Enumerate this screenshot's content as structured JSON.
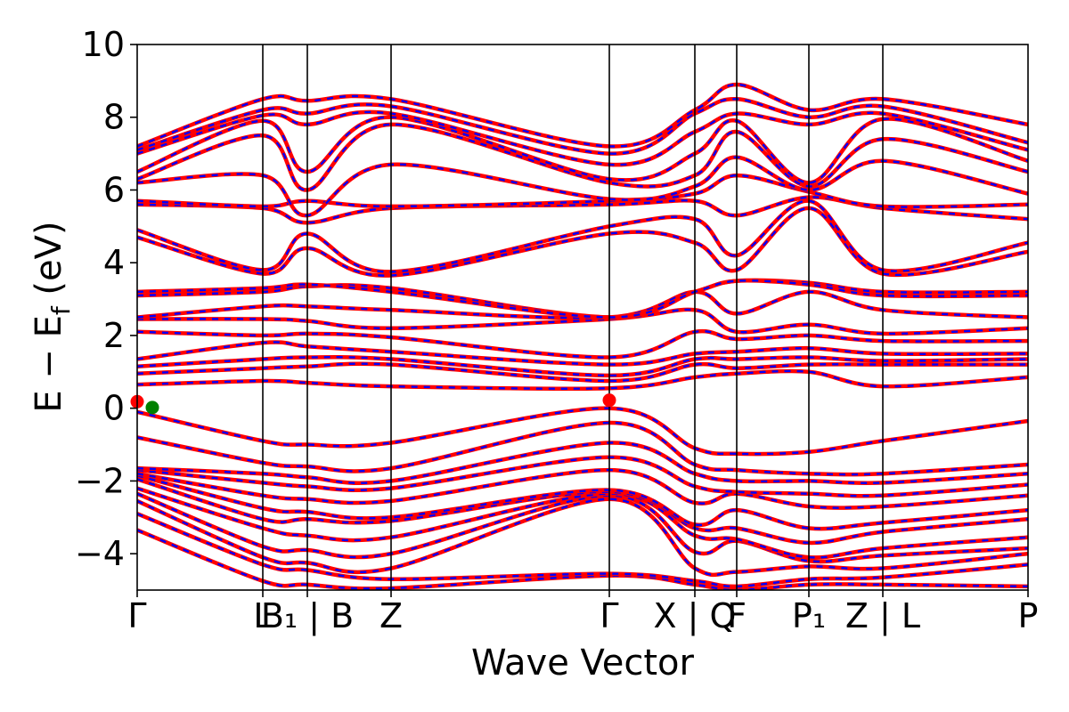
{
  "chart_data": {
    "type": "line",
    "xlabel": "Wave Vector",
    "ylabel": "E − E",
    "ylabel_sub": "f",
    "ylabel_unit": " (eV)",
    "ylim": [
      -5,
      10
    ],
    "yticks": [
      -4,
      -2,
      0,
      2,
      4,
      6,
      8,
      10
    ],
    "ytick_labels": [
      "−4",
      "−2",
      "0",
      "2",
      "4",
      "6",
      "8",
      "10"
    ],
    "xlim": [
      0,
      10
    ],
    "kpath": [
      {
        "label": "Γ",
        "x": 0
      },
      {
        "label": "L",
        "x": 1.41
      },
      {
        "label": "B₁ | B",
        "x": 1.91
      },
      {
        "label": "Z",
        "x": 2.85
      },
      {
        "label": "Γ",
        "x": 5.3
      },
      {
        "label": "X | Q",
        "x": 6.26
      },
      {
        "label": "F",
        "x": 6.73
      },
      {
        "label": "P₁",
        "x": 7.54
      },
      {
        "label": "Z | L",
        "x": 8.37
      },
      {
        "label": "P",
        "x": 10.0
      }
    ],
    "series": [
      {
        "name": "",
        "style": "spin-up",
        "color": "#ff0000",
        "linestyle": "solid"
      },
      {
        "name": "",
        "style": "spin-down",
        "color": "#0000ff",
        "linestyle": "dashed"
      }
    ],
    "bands": [
      {
        "y": [
          -3.35,
          -4.75,
          -4.85,
          -4.95,
          -4.6,
          -4.85,
          -5.0,
          -4.85,
          -4.85,
          -4.9
        ]
      },
      {
        "y": [
          -2.9,
          -4.3,
          -4.45,
          -4.7,
          -4.55,
          -4.75,
          -4.9,
          -4.7,
          -4.65,
          -4.3
        ]
      },
      {
        "y": [
          -2.55,
          -4.1,
          -4.25,
          -4.4,
          -2.5,
          -4.4,
          -4.5,
          -4.35,
          -4.4,
          -4.0
        ]
      },
      {
        "y": [
          -2.35,
          -3.8,
          -3.9,
          -4.0,
          -2.4,
          -3.95,
          -3.65,
          -4.2,
          -4.05,
          -3.85
        ]
      },
      {
        "y": [
          -2.2,
          -3.3,
          -3.5,
          -3.55,
          -2.35,
          -3.5,
          -3.6,
          -4.1,
          -3.85,
          -3.55
        ]
      },
      {
        "y": [
          -1.95,
          -3.05,
          -3.05,
          -3.1,
          -2.3,
          -3.3,
          -3.3,
          -3.7,
          -3.4,
          -3.05
        ]
      },
      {
        "y": [
          -1.85,
          -2.75,
          -2.85,
          -3.0,
          -2.25,
          -3.2,
          -2.8,
          -3.3,
          -3.15,
          -2.8
        ]
      },
      {
        "y": [
          -1.8,
          -2.4,
          -2.5,
          -2.55,
          -1.7,
          -2.6,
          -2.35,
          -2.7,
          -2.7,
          -2.4
        ]
      },
      {
        "y": [
          -1.7,
          -2.05,
          -2.15,
          -2.2,
          -1.35,
          -2.15,
          -2.3,
          -2.35,
          -2.4,
          -2.1
        ]
      },
      {
        "y": [
          -1.65,
          -1.8,
          -1.9,
          -2.0,
          -0.95,
          -1.8,
          -2.0,
          -2.0,
          -2.05,
          -1.8
        ]
      },
      {
        "y": [
          -0.8,
          -1.5,
          -1.6,
          -1.65,
          -0.4,
          -1.55,
          -1.7,
          -1.8,
          -1.8,
          -1.55
        ]
      },
      {
        "y": [
          -0.1,
          -0.9,
          -1.0,
          -0.95,
          0.0,
          -1.1,
          -1.25,
          -1.2,
          -0.9,
          -0.35
        ]
      },
      {
        "y": [
          0.65,
          0.75,
          0.7,
          0.6,
          0.55,
          0.85,
          0.95,
          1.0,
          0.6,
          0.85
        ]
      },
      {
        "y": [
          0.95,
          1.1,
          1.15,
          1.2,
          0.75,
          1.2,
          1.1,
          1.2,
          1.2,
          1.2
        ]
      },
      {
        "y": [
          1.15,
          1.35,
          1.4,
          1.35,
          0.9,
          1.35,
          1.35,
          1.4,
          1.3,
          1.35
        ]
      },
      {
        "y": [
          1.35,
          1.8,
          1.7,
          1.55,
          1.2,
          1.5,
          1.55,
          1.65,
          1.5,
          1.5
        ]
      },
      {
        "y": [
          2.1,
          2.0,
          2.05,
          1.95,
          1.4,
          2.1,
          1.9,
          2.0,
          1.85,
          1.85
        ]
      },
      {
        "y": [
          2.45,
          2.45,
          2.4,
          2.2,
          2.45,
          2.7,
          2.1,
          2.3,
          2.05,
          2.2
        ]
      },
      {
        "y": [
          2.5,
          2.8,
          2.8,
          2.7,
          2.5,
          3.2,
          2.6,
          3.2,
          2.7,
          2.5
        ]
      },
      {
        "y": [
          3.1,
          3.2,
          3.35,
          3.3,
          2.5,
          3.2,
          3.5,
          3.45,
          3.2,
          3.2
        ]
      },
      {
        "y": [
          3.2,
          3.3,
          3.4,
          3.2,
          2.5,
          3.2,
          3.5,
          3.4,
          3.1,
          3.1
        ]
      },
      {
        "y": [
          4.7,
          3.7,
          4.4,
          3.65,
          4.8,
          4.55,
          3.8,
          5.5,
          3.7,
          4.3
        ]
      },
      {
        "y": [
          4.9,
          3.8,
          4.8,
          3.75,
          5.0,
          5.2,
          4.2,
          5.7,
          3.8,
          4.55
        ]
      },
      {
        "y": [
          5.6,
          5.5,
          5.1,
          5.5,
          5.6,
          5.7,
          5.3,
          5.8,
          5.5,
          5.2
        ]
      },
      {
        "y": [
          5.7,
          5.55,
          5.7,
          5.55,
          5.7,
          5.9,
          6.4,
          5.95,
          5.55,
          5.6
        ]
      },
      {
        "y": [
          6.2,
          6.4,
          5.3,
          6.7,
          5.75,
          6.1,
          6.9,
          6.0,
          6.8,
          5.9
        ]
      },
      {
        "y": [
          6.3,
          7.5,
          6.0,
          7.8,
          6.2,
          6.4,
          7.6,
          6.1,
          7.4,
          6.5
        ]
      },
      {
        "y": [
          6.5,
          7.9,
          6.5,
          8.0,
          6.3,
          7.0,
          7.9,
          6.2,
          7.95,
          6.8
        ]
      },
      {
        "y": [
          7.0,
          8.05,
          7.8,
          8.1,
          6.7,
          7.6,
          8.1,
          7.8,
          8.1,
          7.1
        ]
      },
      {
        "y": [
          7.1,
          8.2,
          8.1,
          8.3,
          7.0,
          8.1,
          8.5,
          8.0,
          8.3,
          7.3
        ]
      },
      {
        "y": [
          7.2,
          8.5,
          8.45,
          8.5,
          7.2,
          8.2,
          8.9,
          8.2,
          8.5,
          7.8
        ]
      }
    ],
    "markers": [
      {
        "x": 0.17,
        "y": 0.02,
        "color": "#008000"
      },
      {
        "x": 0.0,
        "y": 0.18,
        "color": "#ff0000"
      },
      {
        "x": 5.3,
        "y": 0.22,
        "color": "#ff0000"
      }
    ]
  }
}
